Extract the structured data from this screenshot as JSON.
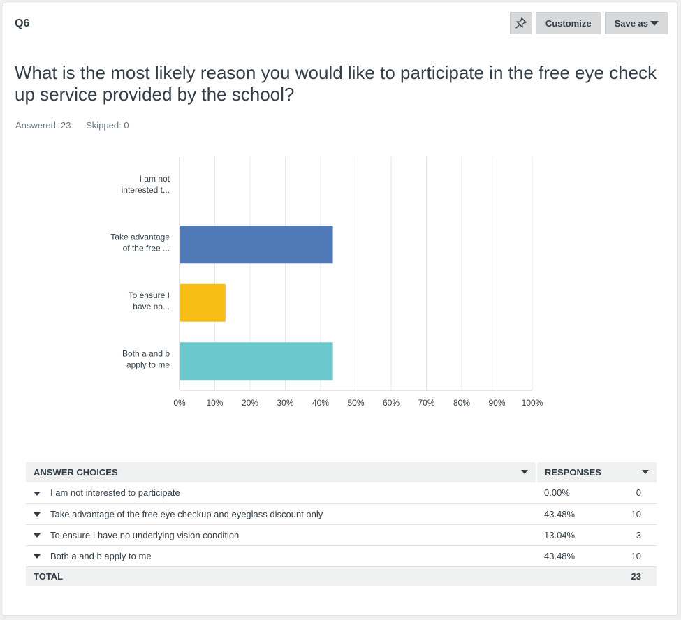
{
  "question_number": "Q6",
  "toolbar": {
    "pin_icon": "pin-icon",
    "customize_label": "Customize",
    "save_as_label": "Save as"
  },
  "question_text": "What is the most likely reason you would like to participate in the free eye check up service provided by the school?",
  "answered": "Answered: 23",
  "skipped": "Skipped: 0",
  "chart_data": {
    "type": "bar",
    "orientation": "horizontal",
    "categories": [
      [
        "I am not",
        "interested t..."
      ],
      [
        "Take advantage",
        "of the free ..."
      ],
      [
        "To ensure I",
        "have no..."
      ],
      [
        "Both a and b",
        "apply to me"
      ]
    ],
    "values": [
      0,
      43.48,
      13.04,
      43.48
    ],
    "colors": [
      "#4f7ab7",
      "#4f7ab7",
      "#f8be15",
      "#6bc8cd"
    ],
    "xlim": [
      0,
      100
    ],
    "xticks": [
      "0%",
      "10%",
      "20%",
      "30%",
      "40%",
      "50%",
      "60%",
      "70%",
      "80%",
      "90%",
      "100%"
    ],
    "grid": true
  },
  "table": {
    "headers": {
      "choices": "ANSWER CHOICES",
      "responses": "RESPONSES"
    },
    "rows": [
      {
        "choice": "I am not interested to participate",
        "percent": "0.00%",
        "count": "0"
      },
      {
        "choice": "Take advantage of the free eye checkup and eyeglass discount only",
        "percent": "43.48%",
        "count": "10"
      },
      {
        "choice": "To ensure I have no underlying vision condition",
        "percent": "13.04%",
        "count": "3"
      },
      {
        "choice": "Both a and b apply to me",
        "percent": "43.48%",
        "count": "10"
      }
    ],
    "total_label": "TOTAL",
    "total_value": "23"
  }
}
